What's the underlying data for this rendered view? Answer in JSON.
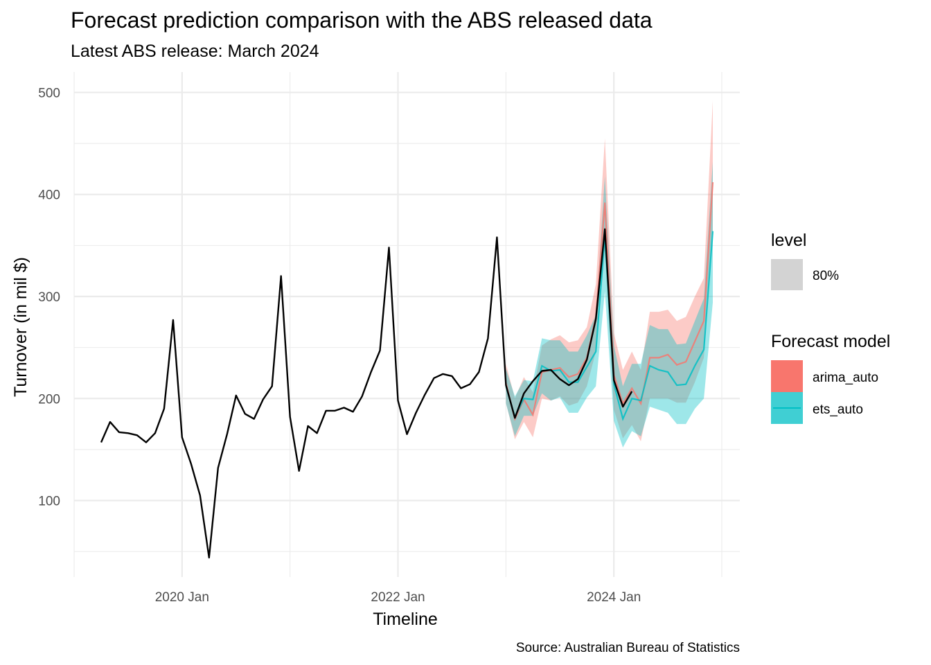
{
  "chart_data": {
    "type": "line",
    "title": "Forecast prediction comparison with the ABS released data",
    "subtitle": "Latest ABS release: March 2024",
    "xlabel": "Timeline",
    "ylabel": "Turnover (in mil $)",
    "caption": "Source: Australian Bureau of Statistics",
    "x_ticks": [
      "2020 Jan",
      "2022 Jan",
      "2024 Jan"
    ],
    "y_ticks": [
      100,
      200,
      300,
      400,
      500
    ],
    "ylim": [
      25,
      520
    ],
    "xlim": [
      "2019-01",
      "2025-03"
    ],
    "grid": true,
    "legend_position": "right",
    "legend": {
      "level_title": "level",
      "level_label": "80%",
      "model_title": "Forecast model",
      "models": [
        "arima_auto",
        "ets_auto"
      ]
    },
    "colors": {
      "actual": "#000000",
      "arima_auto": "#F8766D",
      "ets_auto": "#00BFC4",
      "level_key": "#d3d3d3"
    },
    "actual": {
      "start": "2019-04",
      "values": [
        157,
        177,
        167,
        166,
        164,
        157,
        166,
        190,
        277,
        162,
        136,
        105,
        44,
        132,
        165,
        203,
        185,
        180,
        199,
        212,
        320,
        182,
        129,
        173,
        166,
        188,
        188,
        191,
        187,
        202,
        226,
        247,
        348,
        198,
        165,
        186,
        204,
        220,
        224,
        222,
        210,
        214,
        226,
        259,
        358,
        213,
        181,
        205,
        217,
        227,
        228,
        219,
        213,
        219,
        238,
        278,
        366,
        218,
        192,
        207
      ]
    },
    "series": [
      {
        "name": "arima_auto",
        "start": "2023-01",
        "values": [
          215,
          180,
          199,
          184,
          226,
          228,
          230,
          221,
          224,
          240,
          280,
          392,
          223,
          195,
          210,
          195,
          240,
          240,
          243,
          233,
          236,
          256,
          276,
          412
        ],
        "lo80": [
          196,
          160,
          177,
          162,
          200,
          198,
          202,
          193,
          196,
          212,
          246,
          345,
          189,
          161,
          174,
          158,
          200,
          200,
          200,
          196,
          196,
          216,
          240,
          362
        ],
        "hi80": [
          234,
          200,
          221,
          206,
          252,
          258,
          262,
          255,
          257,
          270,
          312,
          455,
          264,
          228,
          246,
          228,
          285,
          285,
          287,
          276,
          280,
          300,
          318,
          492
        ]
      },
      {
        "name": "ets_auto",
        "start": "2023-01",
        "values": [
          212,
          182,
          200,
          199,
          232,
          227,
          228,
          216,
          216,
          231,
          246,
          360,
          214,
          180,
          200,
          198,
          232,
          228,
          226,
          213,
          214,
          232,
          248,
          364
        ],
        "lo80": [
          195,
          163,
          183,
          183,
          205,
          198,
          201,
          186,
          186,
          201,
          212,
          305,
          178,
          152,
          168,
          163,
          192,
          189,
          186,
          175,
          175,
          190,
          200,
          294
        ],
        "hi80": [
          229,
          202,
          218,
          217,
          259,
          257,
          257,
          246,
          246,
          262,
          282,
          418,
          252,
          212,
          234,
          234,
          272,
          268,
          268,
          253,
          254,
          276,
          298,
          432
        ]
      }
    ]
  }
}
